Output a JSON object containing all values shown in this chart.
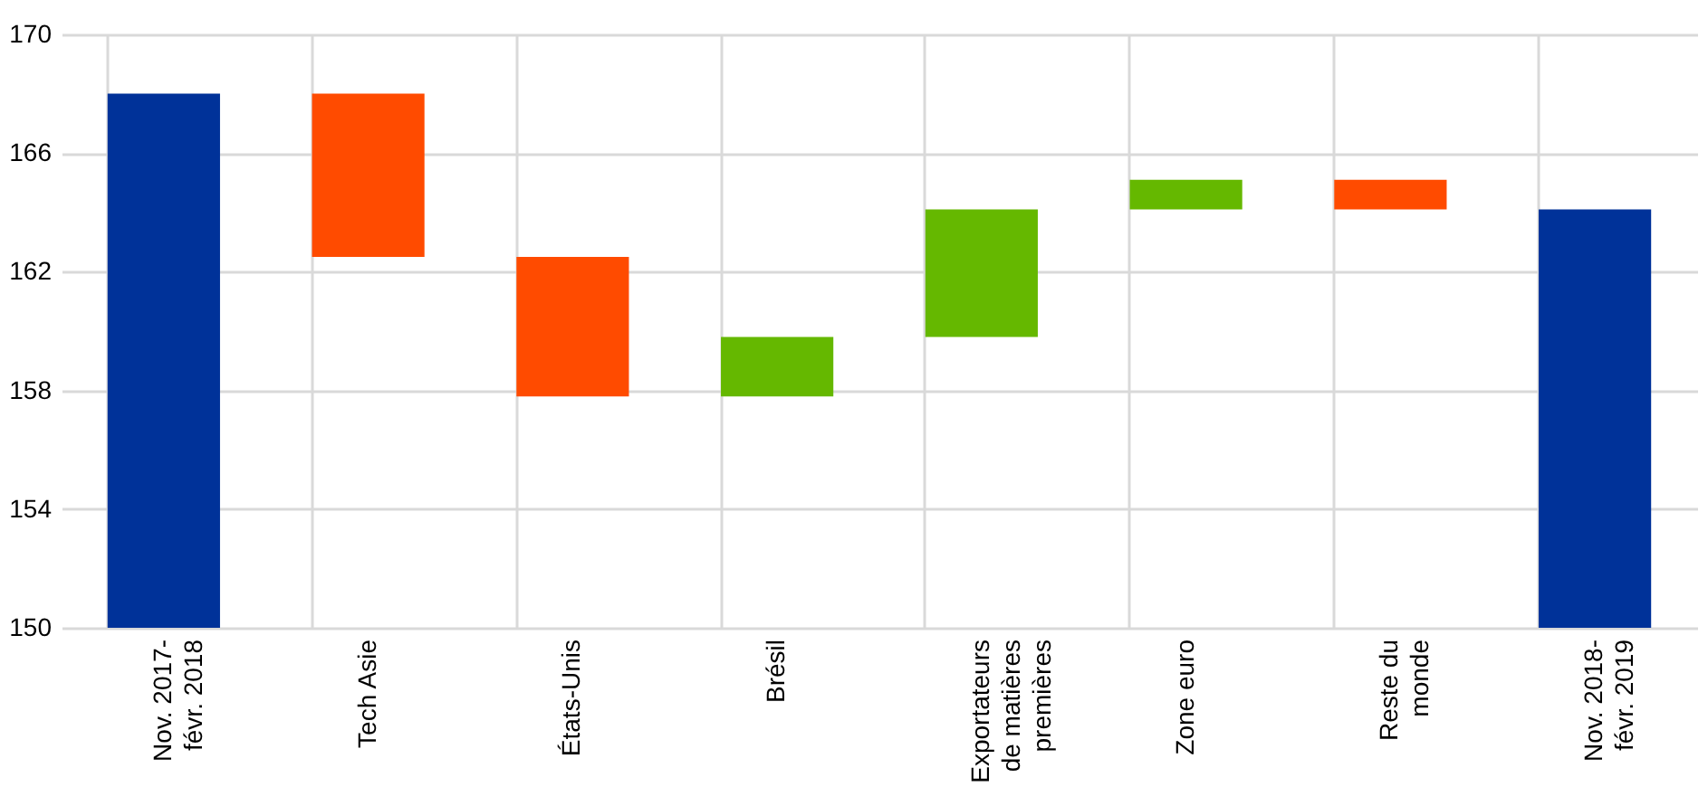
{
  "chart_data": {
    "type": "bar",
    "categories": [
      "Nov. 2017-févr. 2018",
      "Tech Asie",
      "États-Unis",
      "Brésil",
      "Exportateurs de matières premières",
      "Zone euro",
      "Reste du monde",
      "Nov. 2018-févr. 2019"
    ],
    "values": [
      18.0,
      -5.5,
      -4.7,
      2.0,
      4.3,
      1.0,
      -1.0,
      14.1
    ],
    "base": [
      150,
      168.0,
      162.5,
      157.8,
      159.8,
      164.1,
      165.1,
      150
    ],
    "colors": [
      "#003299",
      "#ff4b00",
      "#ff4b00",
      "#65b800",
      "#65b800",
      "#65b800",
      "#ff4b00",
      "#003299"
    ],
    "ylim": [
      150,
      170
    ],
    "yticks": [
      150,
      154,
      158,
      162,
      166,
      170
    ],
    "grid": true
  }
}
